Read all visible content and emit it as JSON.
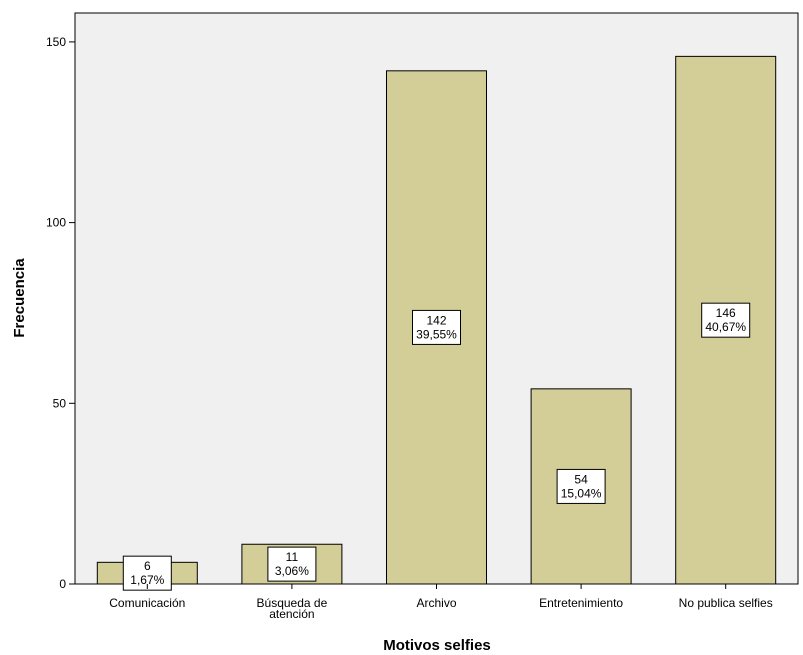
{
  "chart_data": {
    "type": "bar",
    "title": "",
    "xlabel": "Motivos selfies",
    "ylabel": "Frecuencia",
    "categories": [
      [
        "Comunicación"
      ],
      [
        "Búsqueda de",
        "atención"
      ],
      [
        "Archivo"
      ],
      [
        "Entretenimiento"
      ],
      [
        "No publica selfies"
      ]
    ],
    "values": [
      6,
      11,
      142,
      54,
      146
    ],
    "value_labels": [
      "6",
      "11",
      "142",
      "54",
      "146"
    ],
    "percent_labels": [
      "1,67%",
      "3,06%",
      "39,55%",
      "15,04%",
      "40,67%"
    ],
    "ylim": [
      0,
      158
    ],
    "yticks": [
      0,
      50,
      100,
      150
    ],
    "grid": false,
    "legend": "none",
    "colors": {
      "plot_background": "#f0f0f0",
      "bar_fill": "#d3ce97",
      "bar_stroke": "#000000",
      "label_box": "#ffffff"
    }
  }
}
